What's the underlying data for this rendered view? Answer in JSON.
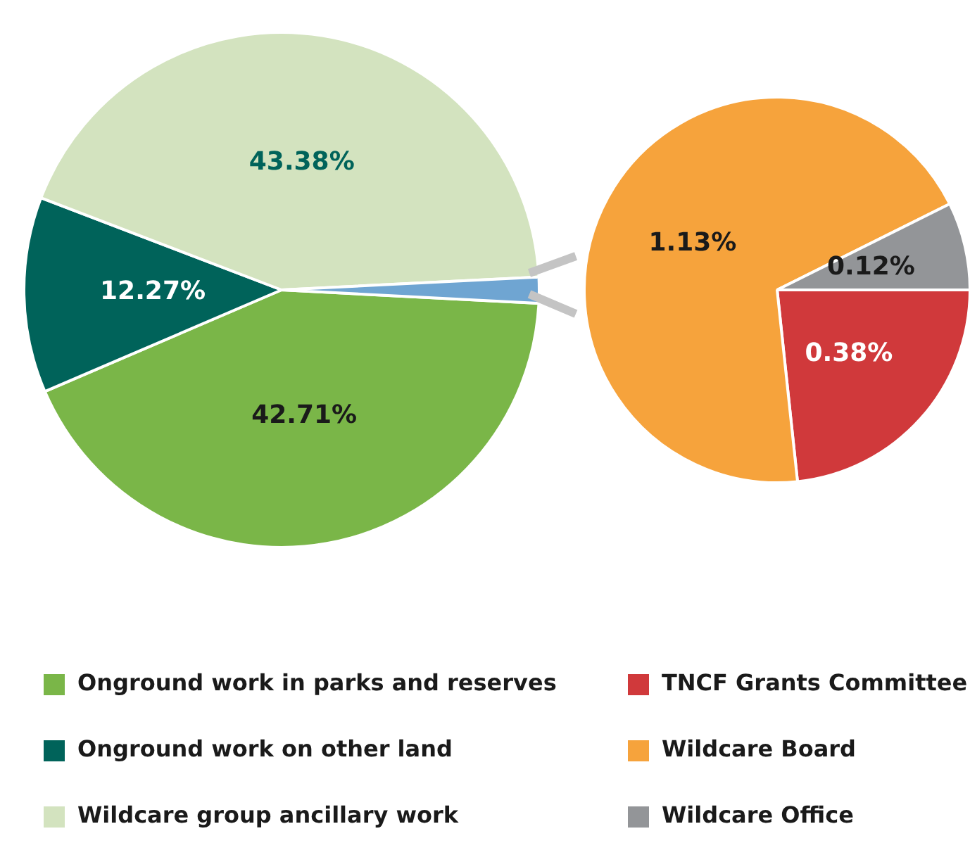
{
  "chart_data": [
    {
      "type": "pie",
      "categories": [
        "Onground work in parks and reserves",
        "Onground work on other land",
        "Wildcare group ancillary work",
        null
      ],
      "values": [
        42.71,
        12.27,
        43.38,
        1.63
      ],
      "colors": [
        "#7ab648",
        "#00635a",
        "#d3e3bf",
        "#6fa5d2"
      ],
      "value_labels": [
        "42.71%",
        "12.27%",
        "43.38%",
        null
      ],
      "legend": "bottom"
    },
    {
      "type": "pie",
      "categories": [
        "TNCF Grants Committee",
        "Wildcare Board",
        "Wildcare Office"
      ],
      "values": [
        0.38,
        1.13,
        0.12
      ],
      "colors": [
        "#d0393b",
        "#f6a33c",
        "#939598"
      ],
      "value_labels": [
        "0.38%",
        "1.13%",
        "0.12%"
      ],
      "legend": "bottom"
    }
  ]
}
